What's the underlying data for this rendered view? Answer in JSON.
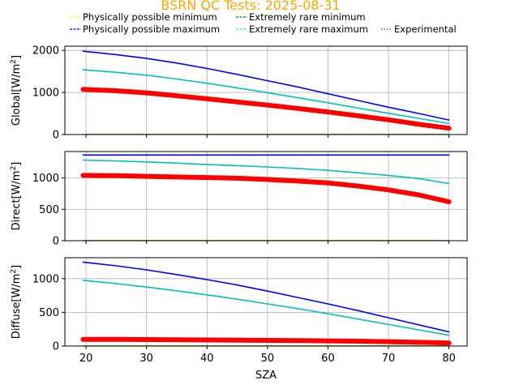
{
  "chart_data": {
    "type": "line",
    "title": "BSRN QC Tests: 2025-08-31",
    "xlabel": "SZA",
    "xlim": [
      16.5,
      83
    ],
    "xticks": [
      20,
      30,
      40,
      50,
      60,
      70,
      80
    ],
    "grid": true,
    "legend": {
      "placement": "top",
      "entries": [
        {
          "label": "Physically possible minimum",
          "color": "#ffff00",
          "style": "dashed"
        },
        {
          "label": "Physically possible maximum",
          "color": "#0000ff",
          "style": "dashed"
        },
        {
          "label": "Extremely rare minimum",
          "color": "#008000",
          "style": "dashed"
        },
        {
          "label": "Extremely rare maximum",
          "color": "#00ffff",
          "style": "dashed"
        },
        {
          "label": "Experimental",
          "color": "#ff0000",
          "style": "dotted"
        }
      ]
    },
    "panels": [
      {
        "ylabel": "Global",
        "unit_base": "[W/m",
        "unit_sup": "2",
        "unit_end": "]",
        "ylim": [
          0,
          2100
        ],
        "yticks": [
          0,
          1000,
          2000
        ],
        "x": [
          19.5,
          25,
          30,
          35,
          40,
          45,
          50,
          55,
          60,
          65,
          70,
          75,
          80
        ],
        "series": [
          {
            "key": "pp_min",
            "color": "#ffff00",
            "values": [
              0,
              0,
              0,
              0,
              0,
              0,
              0,
              0,
              0,
              0,
              0,
              0,
              0
            ]
          },
          {
            "key": "er_min",
            "color": "#008000",
            "values": [
              0,
              0,
              0,
              0,
              0,
              0,
              0,
              0,
              0,
              0,
              0,
              0,
              0
            ]
          },
          {
            "key": "pp_max",
            "color": "#0000ff",
            "values": [
              1980,
              1900,
              1810,
              1700,
              1570,
              1430,
              1280,
              1130,
              970,
              810,
              650,
              500,
              345
            ]
          },
          {
            "key": "er_max",
            "color": "#00c0c0",
            "values": [
              1540,
              1480,
              1410,
              1320,
              1220,
              1110,
              995,
              875,
              755,
              630,
              505,
              385,
              260
            ]
          },
          {
            "key": "experimental",
            "color": "#ff0000",
            "values": [
              1075,
              1040,
              990,
              920,
              850,
              775,
              700,
              620,
              535,
              445,
              350,
              245,
              150
            ]
          }
        ]
      },
      {
        "ylabel": "Direct",
        "unit_base": "[W/m",
        "unit_sup": "2",
        "unit_end": "]",
        "ylim": [
          0,
          1420
        ],
        "yticks": [
          0,
          500,
          1000
        ],
        "x": [
          19.5,
          25,
          30,
          35,
          40,
          45,
          50,
          55,
          60,
          65,
          70,
          75,
          80
        ],
        "series": [
          {
            "key": "pp_min",
            "color": "#ffff00",
            "values": [
              0,
              0,
              0,
              0,
              0,
              0,
              0,
              0,
              0,
              0,
              0,
              0,
              0
            ]
          },
          {
            "key": "er_min",
            "color": "#008000",
            "values": [
              0,
              0,
              0,
              0,
              0,
              0,
              0,
              0,
              0,
              0,
              0,
              0,
              0
            ]
          },
          {
            "key": "pp_max",
            "color": "#0000ff",
            "values": [
              1365,
              1365,
              1365,
              1365,
              1365,
              1365,
              1365,
              1365,
              1365,
              1365,
              1365,
              1365,
              1365
            ]
          },
          {
            "key": "er_max",
            "color": "#00c0c0",
            "values": [
              1285,
              1270,
              1255,
              1235,
              1215,
              1195,
              1175,
              1150,
              1120,
              1080,
              1040,
              990,
              910
            ]
          },
          {
            "key": "experimental",
            "color": "#ff0000",
            "values": [
              1040,
              1035,
              1025,
              1015,
              1005,
              995,
              975,
              950,
              920,
              870,
              810,
              730,
              620
            ]
          }
        ]
      },
      {
        "ylabel": "Diffuse",
        "unit_base": "[W/m",
        "unit_sup": "2",
        "unit_end": "]",
        "ylim": [
          0,
          1310
        ],
        "yticks": [
          0,
          500,
          1000
        ],
        "x": [
          19.5,
          25,
          30,
          35,
          40,
          45,
          50,
          55,
          60,
          65,
          70,
          75,
          80
        ],
        "series": [
          {
            "key": "pp_min",
            "color": "#ffff00",
            "values": [
              0,
              0,
              0,
              0,
              0,
              0,
              0,
              0,
              0,
              0,
              0,
              0,
              0
            ]
          },
          {
            "key": "er_min",
            "color": "#008000",
            "values": [
              0,
              0,
              0,
              0,
              0,
              0,
              0,
              0,
              0,
              0,
              0,
              0,
              0
            ]
          },
          {
            "key": "pp_max",
            "color": "#0000ff",
            "values": [
              1245,
              1190,
              1130,
              1060,
              985,
              905,
              815,
              720,
              625,
              525,
              420,
              315,
              210
            ]
          },
          {
            "key": "er_max",
            "color": "#00c0c0",
            "values": [
              975,
              925,
              875,
              820,
              760,
              695,
              625,
              555,
              480,
              400,
              320,
              240,
              160
            ]
          },
          {
            "key": "experimental",
            "color": "#ff0000",
            "values": [
              100,
              98,
              96,
              93,
              90,
              87,
              84,
              80,
              77,
              72,
              65,
              55,
              45
            ]
          }
        ]
      }
    ]
  }
}
